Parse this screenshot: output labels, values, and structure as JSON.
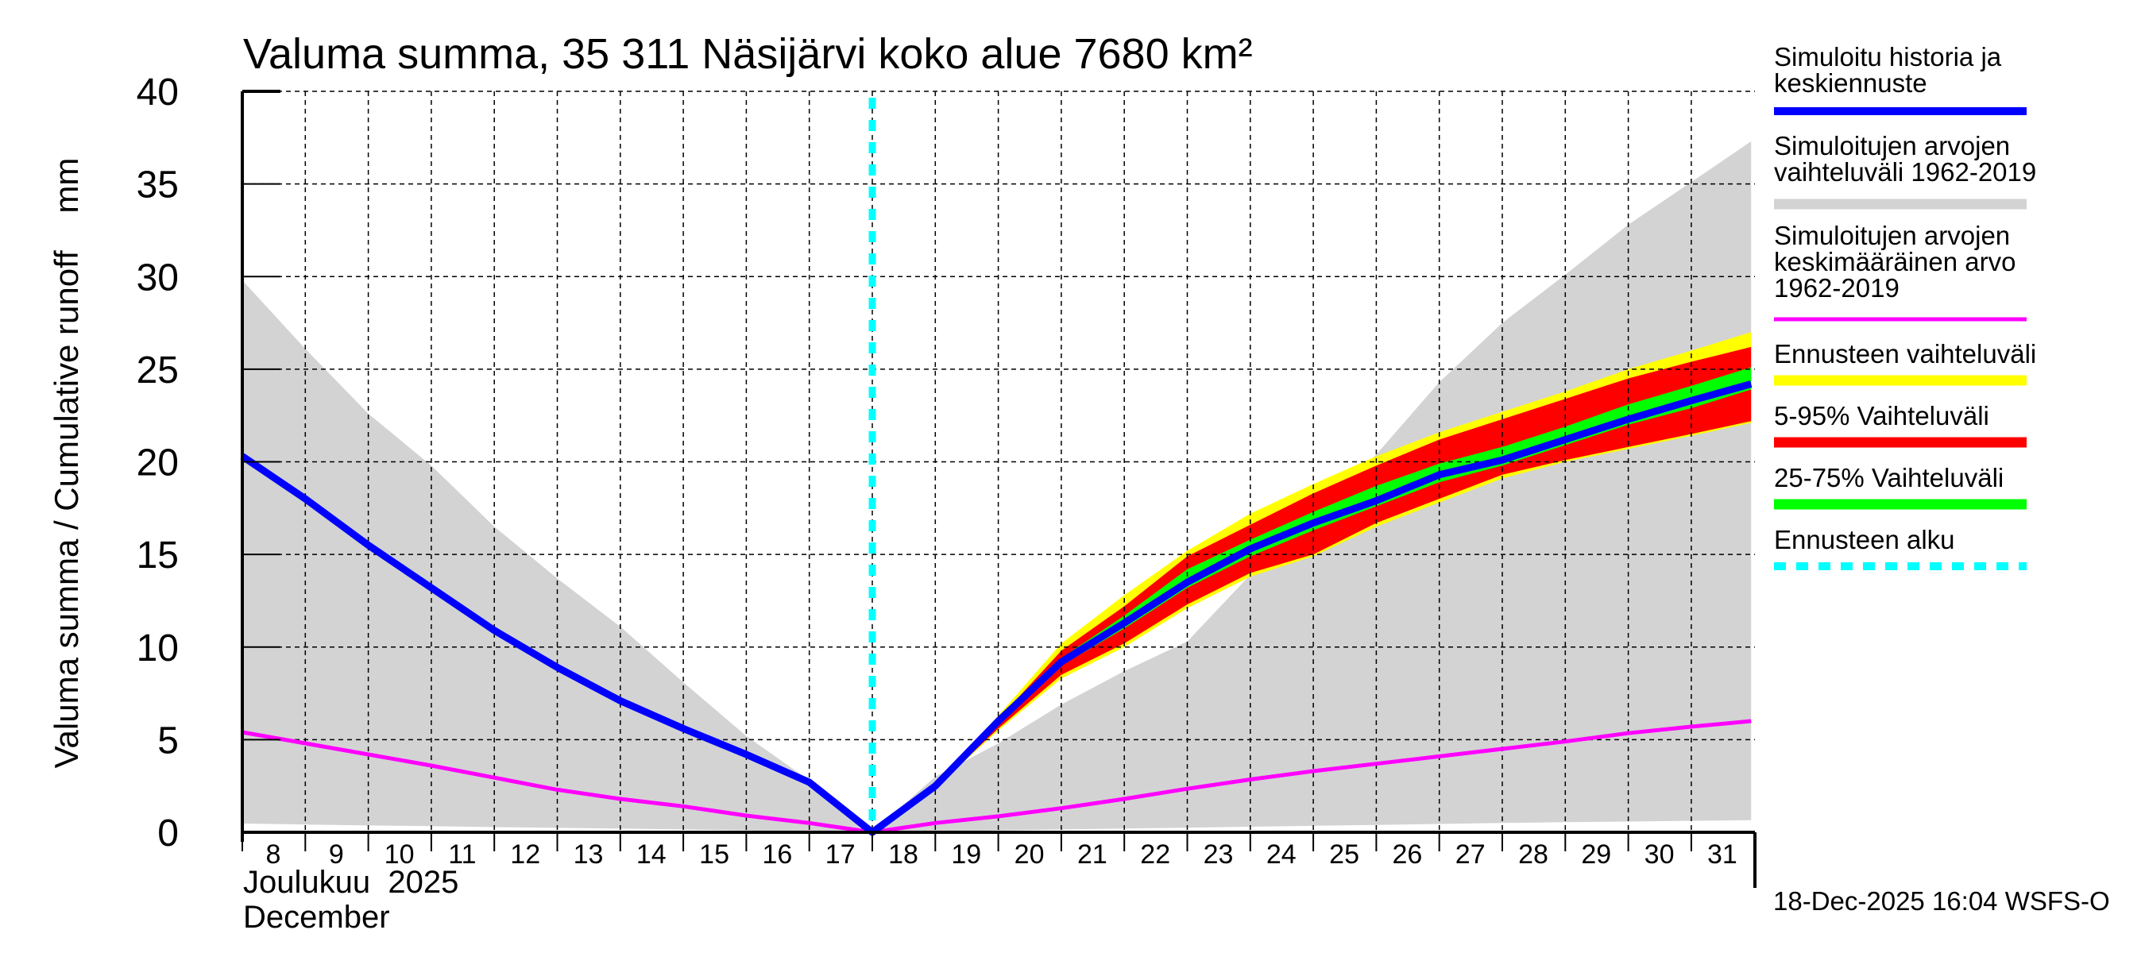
{
  "chart_data": {
    "type": "area",
    "title": "Valuma summa, 35 311 Näsijärvi koko alue 7680 km²",
    "ylabel": "Valuma summa / Cumulative runoff    mm",
    "xlabel_line1": "Joulukuu  2025",
    "xlabel_line2": "December",
    "ylim": [
      0,
      40
    ],
    "xlim": [
      8,
      31.95
    ],
    "yticks": [
      "0",
      "5",
      "10",
      "15",
      "20",
      "25",
      "30",
      "35",
      "40"
    ],
    "xticks": [
      "8",
      "9",
      "10",
      "11",
      "12",
      "13",
      "14",
      "15",
      "16",
      "17",
      "18",
      "19",
      "20",
      "21",
      "22",
      "23",
      "24",
      "25",
      "26",
      "27",
      "28",
      "29",
      "30",
      "31"
    ],
    "grid": true,
    "forecast_start_day": 18,
    "footer": "18-Dec-2025 16:04 WSFS-O",
    "colors": {
      "history": "#0000ff",
      "hist_range": "#d3d3d3",
      "hist_mean": "#ff00ff",
      "forecast_range": "#ffff00",
      "p5_95": "#ff0000",
      "p25_75": "#00ff00",
      "forecast_start": "#00ffff"
    },
    "series": [
      {
        "name": "Simuloitujen arvojen vaihteluväli 1962-2019",
        "kind": "band",
        "color_key": "hist_range",
        "x": [
          8,
          9,
          10,
          11,
          12,
          13,
          14,
          15,
          16,
          17,
          18,
          19,
          20,
          21,
          22,
          23,
          24,
          25,
          26,
          27,
          28,
          29,
          30,
          31,
          31.95
        ],
        "upper": [
          29.8,
          26.1,
          22.6,
          19.8,
          16.5,
          13.7,
          11.1,
          8.1,
          5.2,
          2.8,
          0,
          3.0,
          4.8,
          6.9,
          8.7,
          10.3,
          13.9,
          17.1,
          20.4,
          24.3,
          27.5,
          30.1,
          32.8,
          35.1,
          37.3
        ],
        "lower": [
          0.47,
          0.42,
          0.37,
          0.33,
          0.28,
          0.24,
          0.2,
          0.15,
          0.1,
          0.05,
          0,
          0.05,
          0.1,
          0.15,
          0.2,
          0.25,
          0.3,
          0.35,
          0.4,
          0.45,
          0.5,
          0.55,
          0.58,
          0.62,
          0.65
        ]
      },
      {
        "name": "Ennusteen vaihteluväli",
        "kind": "band",
        "color_key": "forecast_range",
        "x": [
          18,
          19,
          20,
          21,
          22,
          23,
          24,
          25,
          26,
          27,
          28,
          29,
          30,
          31,
          31.95
        ],
        "upper": [
          0,
          2.6,
          6.3,
          10.2,
          12.8,
          15.2,
          17.2,
          18.8,
          20.3,
          21.6,
          22.7,
          23.8,
          25.0,
          26.0,
          27.0
        ],
        "lower": [
          0,
          2.4,
          5.5,
          8.3,
          10.0,
          12.1,
          13.8,
          14.9,
          16.5,
          17.8,
          19.1,
          20.0,
          20.7,
          21.4,
          22.1
        ]
      },
      {
        "name": "5-95% Vaihteluväli",
        "kind": "band",
        "color_key": "p5_95",
        "x": [
          18,
          19,
          20,
          21,
          22,
          23,
          24,
          25,
          26,
          27,
          28,
          29,
          30,
          31,
          31.95
        ],
        "upper": [
          0,
          2.6,
          6.1,
          9.8,
          12.2,
          14.9,
          16.6,
          18.3,
          19.8,
          21.2,
          22.3,
          23.4,
          24.5,
          25.4,
          26.2
        ],
        "lower": [
          0,
          2.4,
          5.6,
          8.5,
          10.2,
          12.3,
          14.0,
          15.0,
          16.7,
          18.0,
          19.3,
          20.1,
          20.8,
          21.5,
          22.2
        ]
      },
      {
        "name": "25-75% Vaihteluväli",
        "kind": "band",
        "color_key": "p25_75",
        "x": [
          18,
          19,
          20,
          21,
          22,
          23,
          24,
          25,
          26,
          27,
          28,
          29,
          30,
          31,
          31.95
        ],
        "upper": [
          0,
          2.55,
          6.05,
          9.4,
          11.7,
          14.2,
          15.8,
          17.3,
          18.7,
          19.9,
          20.8,
          21.9,
          23.1,
          24.1,
          25.1
        ],
        "lower": [
          0,
          2.45,
          5.9,
          9.0,
          11.0,
          13.2,
          14.9,
          16.3,
          17.6,
          18.9,
          19.8,
          20.9,
          22.0,
          22.9,
          23.9
        ]
      },
      {
        "name": "Simuloitujen arvojen keskimääräinen arvo 1962-2019",
        "kind": "line",
        "color_key": "hist_mean",
        "x": [
          8,
          9,
          10,
          11,
          12,
          13,
          14,
          15,
          16,
          17,
          18,
          19,
          20,
          21,
          22,
          23,
          24,
          25,
          26,
          27,
          28,
          29,
          30,
          31,
          31.95
        ],
        "y": [
          5.4,
          4.8,
          4.2,
          3.6,
          2.95,
          2.3,
          1.8,
          1.4,
          0.9,
          0.5,
          0,
          0.5,
          0.86,
          1.3,
          1.8,
          2.35,
          2.85,
          3.3,
          3.7,
          4.1,
          4.5,
          4.9,
          5.35,
          5.7,
          6.0
        ]
      },
      {
        "name": "Simuloitu historia ja keskiennuste",
        "kind": "line",
        "color_key": "history",
        "x": [
          8,
          9,
          10,
          11,
          12,
          13,
          14,
          15,
          16,
          17,
          18,
          19,
          20,
          21,
          22,
          23,
          24,
          25,
          26,
          27,
          28,
          29,
          30,
          31,
          31.95
        ],
        "y": [
          20.3,
          18.0,
          15.5,
          13.2,
          10.9,
          8.9,
          7.1,
          5.6,
          4.2,
          2.7,
          0,
          2.5,
          6.0,
          9.2,
          11.3,
          13.5,
          15.3,
          16.7,
          17.9,
          19.3,
          20.1,
          21.2,
          22.3,
          23.3,
          24.2
        ]
      }
    ],
    "legend": {
      "placement": "right",
      "entries": [
        {
          "lines": [
            "Simuloitu historia ja",
            "keskiennuste"
          ],
          "color_key": "history",
          "style": "solid"
        },
        {
          "lines": [
            "Simuloitujen arvojen",
            "vaihteluväli 1962-2019"
          ],
          "color_key": "hist_range",
          "style": "solid"
        },
        {
          "lines": [
            "Simuloitujen arvojen",
            "keskimääräinen arvo",
            "   1962-2019"
          ],
          "color_key": "hist_mean",
          "style": "thin"
        },
        {
          "lines": [
            "Ennusteen vaihteluväli"
          ],
          "color_key": "forecast_range",
          "style": "solid"
        },
        {
          "lines": [
            "5-95% Vaihteluväli"
          ],
          "color_key": "p5_95",
          "style": "solid"
        },
        {
          "lines": [
            "25-75% Vaihteluväli"
          ],
          "color_key": "p25_75",
          "style": "solid"
        },
        {
          "lines": [
            "Ennusteen alku"
          ],
          "color_key": "forecast_start",
          "style": "dashed"
        }
      ]
    }
  }
}
